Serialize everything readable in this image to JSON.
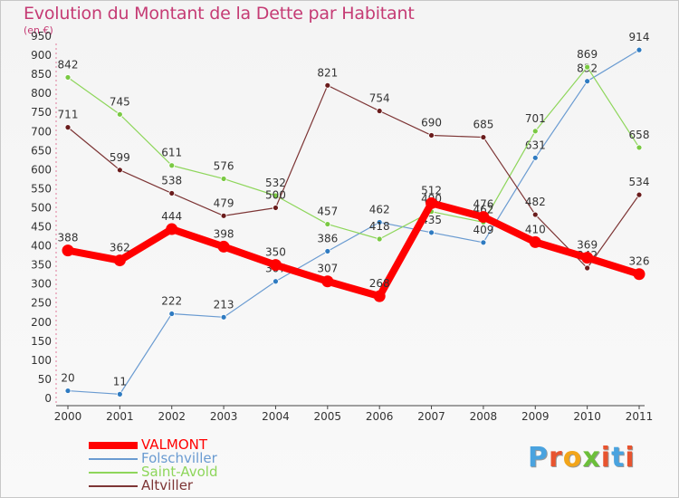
{
  "title": "Evolution du Montant de la Dette par Habitant",
  "subtitle": "(en €)",
  "brand": "Proxiti",
  "brand_colors": [
    "#4aa3df",
    "#e8542f",
    "#f2a51a",
    "#6cbf3b",
    "#e8542f",
    "#4aa3df",
    "#e8542f"
  ],
  "chart_data": {
    "type": "line",
    "x": [
      "2000",
      "2001",
      "2002",
      "2003",
      "2004",
      "2005",
      "2006",
      "2007",
      "2008",
      "2009",
      "2010",
      "2011"
    ],
    "ylim": [
      0,
      950
    ],
    "yticks": [
      0,
      50,
      100,
      150,
      200,
      250,
      300,
      350,
      400,
      450,
      500,
      550,
      600,
      650,
      700,
      750,
      800,
      850,
      900,
      950
    ],
    "grid": false,
    "legend_position": "bottom-left",
    "series": [
      {
        "name": "Folschviller",
        "color": "#6a9bd1",
        "marker": "#2f7bc1",
        "width": 1.2,
        "values": [
          20,
          11,
          222,
          213,
          307,
          386,
          462,
          435,
          409,
          631,
          832,
          914
        ]
      },
      {
        "name": "Saint-Avold",
        "color": "#8ed65b",
        "marker": "#7ac943",
        "width": 1.2,
        "values": [
          842,
          745,
          611,
          576,
          532,
          457,
          418,
          490,
          462,
          701,
          869,
          658
        ]
      },
      {
        "name": "Altviller",
        "color": "#7d3535",
        "marker": "#6a1c1c",
        "width": 1.2,
        "values": [
          711,
          599,
          538,
          479,
          500,
          821,
          754,
          690,
          685,
          482,
          342,
          534
        ]
      },
      {
        "name": "VALMONT",
        "color": "#ff0000",
        "marker": "#ff0000",
        "width": 8,
        "values": [
          388,
          362,
          444,
          398,
          350,
          307,
          268,
          512,
          476,
          410,
          369,
          326
        ]
      }
    ],
    "legend_order": [
      "VALMONT",
      "Folschviller",
      "Saint-Avold",
      "Altviller"
    ]
  }
}
